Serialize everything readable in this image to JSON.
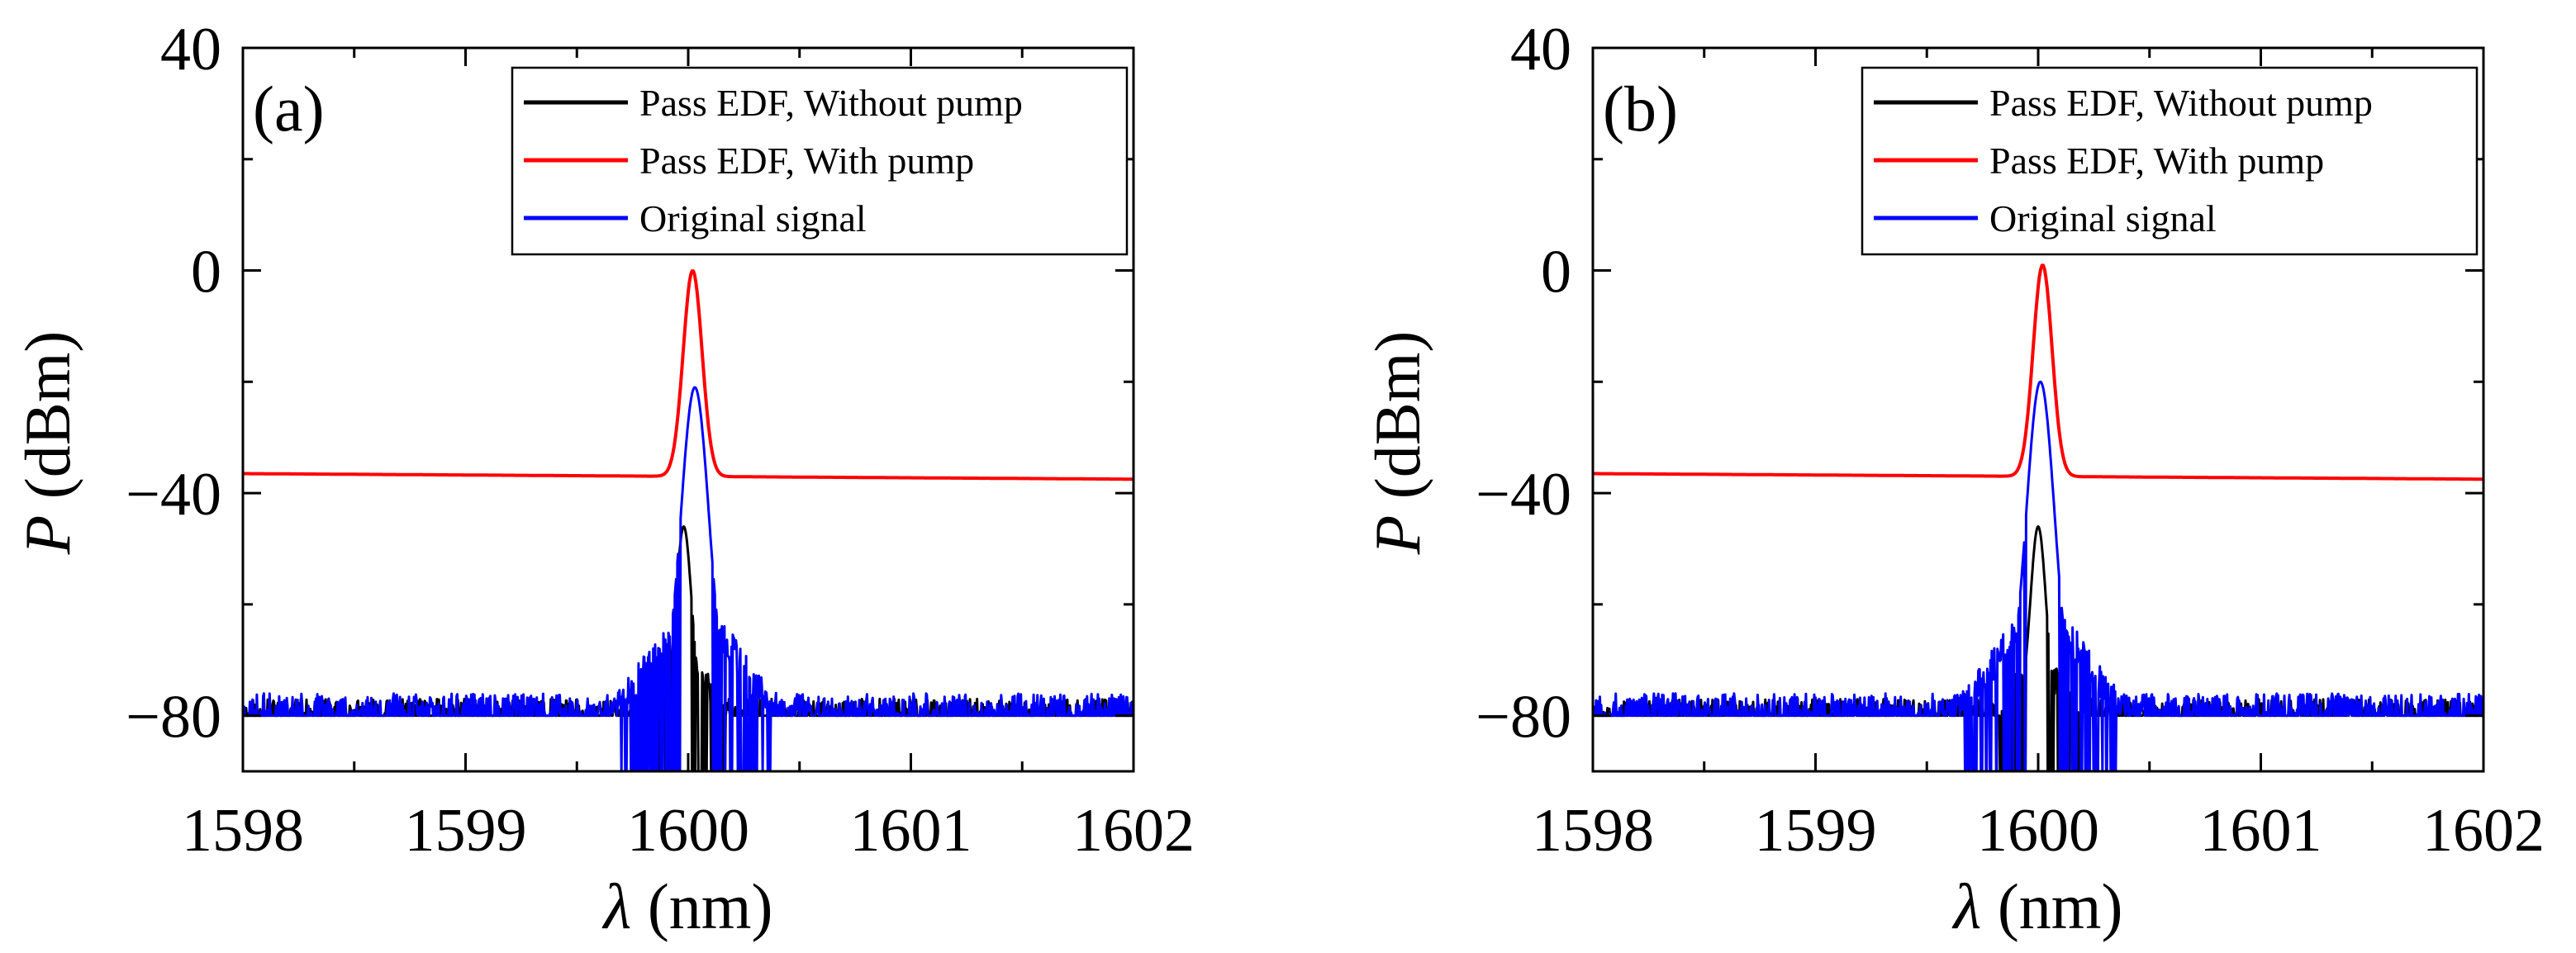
{
  "chart_data": [
    {
      "type": "line",
      "panel_label": "(a)",
      "xlabel_symbol": "λ",
      "xlabel_unit": "(nm)",
      "ylabel_symbol": "P",
      "ylabel_unit": "(dBm)",
      "xlim": [
        1598,
        1602
      ],
      "ylim": [
        -90,
        40
      ],
      "xticks": [
        1598,
        1599,
        1600,
        1601,
        1602
      ],
      "xtick_labels": [
        "1598",
        "1599",
        "1600",
        "1601",
        "1602"
      ],
      "yticks": [
        40,
        0,
        -40,
        -80
      ],
      "ytick_labels": [
        "40",
        "0",
        "−40",
        "−80"
      ],
      "legend_position": "top-right",
      "series": [
        {
          "name": "Pass EDF, Without pump",
          "color": "#000000",
          "kind": "noise_peak",
          "peak_center": 1599.98,
          "peak_value": -46,
          "peak_width": 0.05,
          "noise_floor": -80,
          "noise_range": [
            -90,
            -77
          ],
          "noise_seed": 11
        },
        {
          "name": "Pass EDF, With pump",
          "color": "#ff0000",
          "kind": "smooth_peak",
          "baseline_start": -36.5,
          "baseline_end": -37.5,
          "peak_center": 1600.02,
          "peak_value": 0,
          "peak_width": 0.06
        },
        {
          "name": "Original signal",
          "color": "#0000ff",
          "kind": "noise_peak",
          "peak_center": 1600.03,
          "peak_value": -21,
          "peak_width": 0.09,
          "noise_floor": -80,
          "noise_range": [
            -90,
            -76
          ],
          "noise_seed": 23
        }
      ]
    },
    {
      "type": "line",
      "panel_label": "(b)",
      "xlabel_symbol": "λ",
      "xlabel_unit": "(nm)",
      "ylabel_symbol": "P",
      "ylabel_unit": "(dBm)",
      "xlim": [
        1598,
        1602
      ],
      "ylim": [
        -90,
        40
      ],
      "xticks": [
        1598,
        1599,
        1600,
        1601,
        1602
      ],
      "xtick_labels": [
        "1598",
        "1599",
        "1600",
        "1601",
        "1602"
      ],
      "yticks": [
        40,
        0,
        -40,
        -80
      ],
      "ytick_labels": [
        "40",
        "0",
        "−40",
        "−80"
      ],
      "legend_position": "top-right",
      "series": [
        {
          "name": "Pass EDF, Without pump",
          "color": "#000000",
          "kind": "noise_peak",
          "peak_center": 1600.0,
          "peak_value": -46,
          "peak_width": 0.05,
          "noise_floor": -80,
          "noise_range": [
            -90,
            -77
          ],
          "noise_seed": 37
        },
        {
          "name": "Pass EDF, With pump",
          "color": "#ff0000",
          "kind": "smooth_peak",
          "baseline_start": -36.5,
          "baseline_end": -37.5,
          "peak_center": 1600.02,
          "peak_value": 1,
          "peak_width": 0.06
        },
        {
          "name": "Original signal",
          "color": "#0000ff",
          "kind": "noise_peak",
          "peak_center": 1600.01,
          "peak_value": -20,
          "peak_width": 0.09,
          "noise_floor": -80,
          "noise_range": [
            -90,
            -76
          ],
          "noise_seed": 53
        }
      ]
    }
  ]
}
